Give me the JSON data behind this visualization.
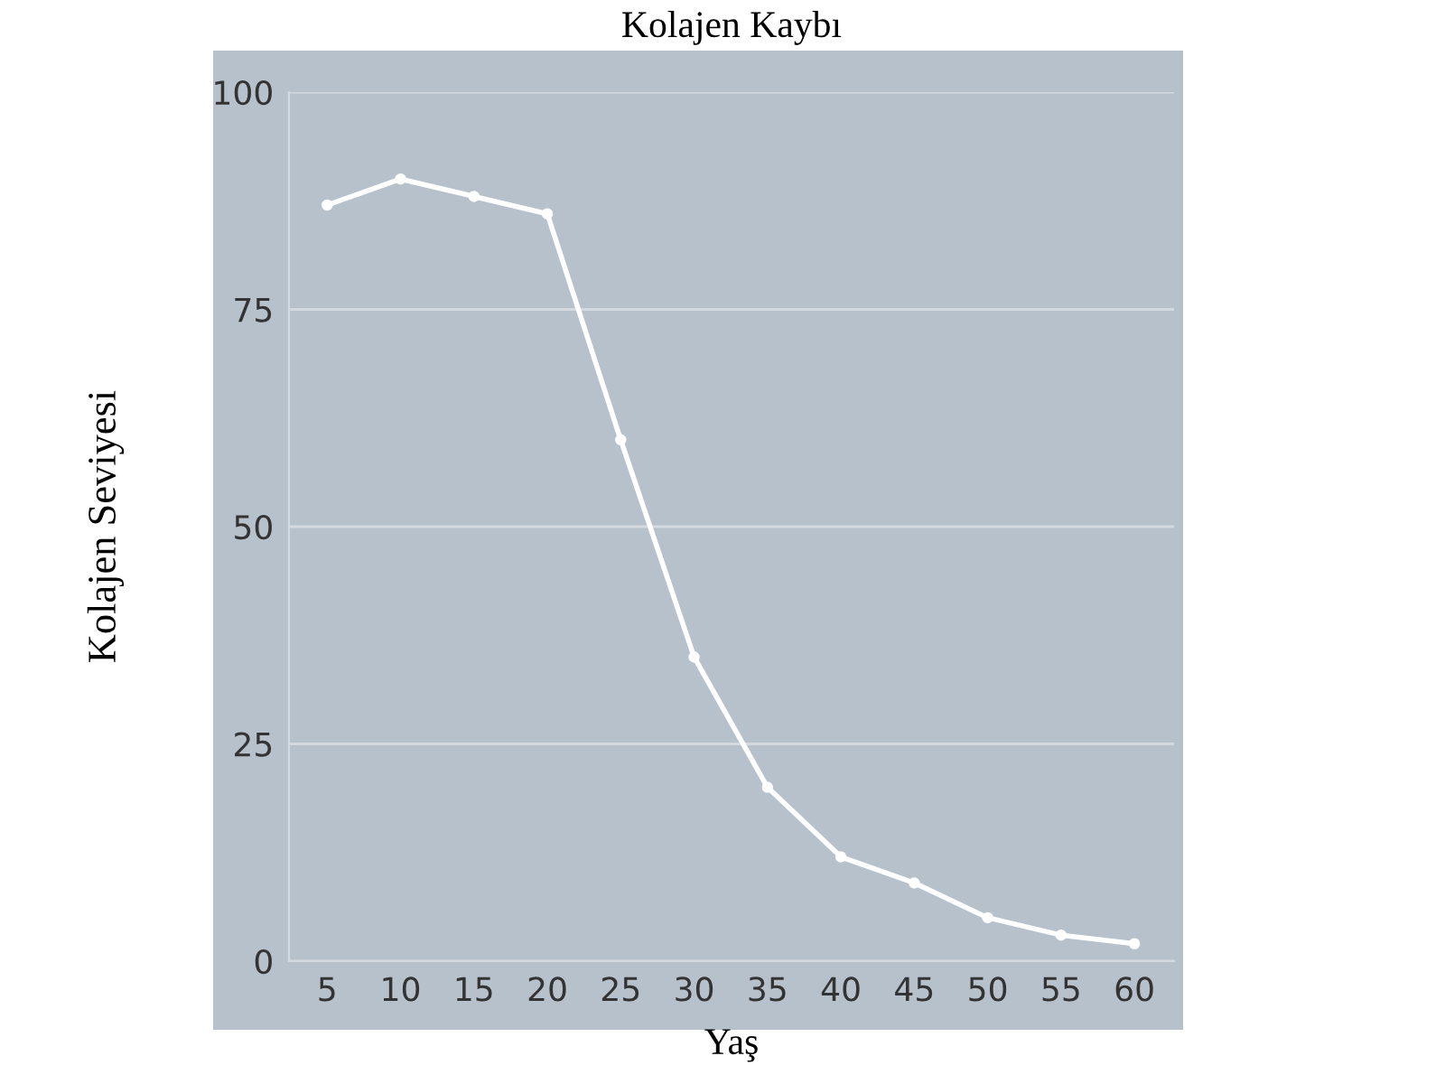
{
  "chart_data": {
    "type": "line",
    "title": "Kolajen Kaybı",
    "xlabel": "Yaş",
    "ylabel": "Kolajen Seviyesi",
    "x": [
      5,
      10,
      15,
      20,
      25,
      30,
      35,
      40,
      45,
      50,
      55,
      60
    ],
    "series": [
      {
        "color": "#ffffff",
        "values": [
          87,
          90,
          88,
          86,
          60,
          35,
          20,
          12,
          9,
          5,
          3,
          2
        ]
      }
    ],
    "xlim": [
      2.4,
      62.7
    ],
    "xticks": [
      5,
      10,
      15,
      20,
      25,
      30,
      35,
      40,
      45,
      50,
      55,
      60
    ],
    "ylim": [
      0,
      100
    ],
    "yticks": [
      0,
      25,
      50,
      75,
      100
    ],
    "grid": "y",
    "marker": "circle",
    "line_style": "solid"
  }
}
